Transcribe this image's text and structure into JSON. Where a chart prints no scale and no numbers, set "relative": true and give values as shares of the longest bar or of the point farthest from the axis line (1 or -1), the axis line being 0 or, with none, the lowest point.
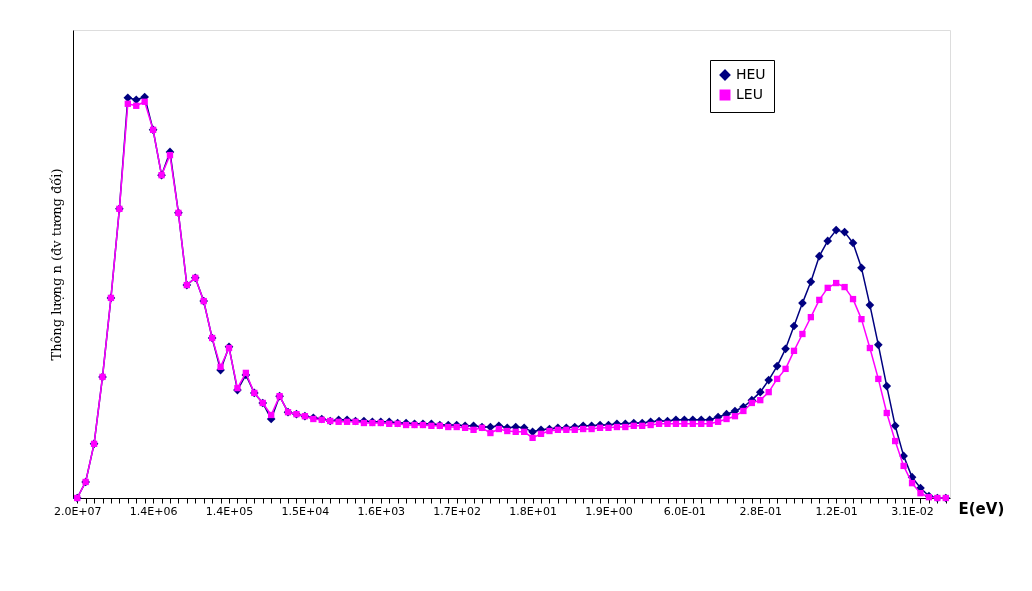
{
  "chart_data": {
    "type": "line",
    "relative": true,
    "xlabel": "E(eV)",
    "ylabel": "Thông lượng n (đv tương đối)",
    "categories": [
      "2.0E+07",
      null,
      null,
      null,
      null,
      null,
      null,
      null,
      null,
      "1.4E+06",
      null,
      null,
      null,
      null,
      null,
      null,
      null,
      null,
      "1.4E+05",
      null,
      null,
      null,
      null,
      null,
      null,
      null,
      null,
      "1.5E+04",
      null,
      null,
      null,
      null,
      null,
      null,
      null,
      null,
      "1.6E+03",
      null,
      null,
      null,
      null,
      null,
      null,
      null,
      null,
      "1.7E+02",
      null,
      null,
      null,
      null,
      null,
      null,
      null,
      null,
      "1.8E+01",
      null,
      null,
      null,
      null,
      null,
      null,
      null,
      null,
      "1.9E+00",
      null,
      null,
      null,
      null,
      null,
      null,
      null,
      null,
      "6.0E-01",
      null,
      null,
      null,
      null,
      null,
      null,
      null,
      null,
      "2.8E-01",
      null,
      null,
      null,
      null,
      null,
      null,
      null,
      null,
      "1.2E-01",
      null,
      null,
      null,
      null,
      null,
      null,
      null,
      null,
      "3.1E-02",
      null,
      null,
      null,
      null
    ],
    "series": [
      {
        "name": "HEU",
        "color": "#000080",
        "marker": "diamond",
        "values": [
          0,
          0.04,
          0.135,
          0.302,
          0.499,
          0.721,
          0.998,
          0.993,
          1,
          0.918,
          0.805,
          0.863,
          0.711,
          0.531,
          0.549,
          0.491,
          0.399,
          0.319,
          0.377,
          0.269,
          0.307,
          0.262,
          0.237,
          0.197,
          0.254,
          0.214,
          0.209,
          0.204,
          0.2,
          0.197,
          0.192,
          0.195,
          0.195,
          0.192,
          0.192,
          0.19,
          0.19,
          0.19,
          0.187,
          0.187,
          0.185,
          0.185,
          0.185,
          0.182,
          0.182,
          0.182,
          0.18,
          0.18,
          0.177,
          0.177,
          0.18,
          0.175,
          0.177,
          0.175,
          0.165,
          0.17,
          0.172,
          0.175,
          0.175,
          0.177,
          0.18,
          0.18,
          0.182,
          0.182,
          0.185,
          0.185,
          0.187,
          0.187,
          0.19,
          0.192,
          0.192,
          0.195,
          0.195,
          0.195,
          0.195,
          0.195,
          0.202,
          0.209,
          0.217,
          0.227,
          0.244,
          0.264,
          0.294,
          0.329,
          0.372,
          0.429,
          0.486,
          0.539,
          0.603,
          0.641,
          0.668,
          0.663,
          0.636,
          0.574,
          0.481,
          0.382,
          0.279,
          0.18,
          0.105,
          0.052,
          0.025,
          0.005,
          0,
          0
        ]
      },
      {
        "name": "LEU",
        "color": "#ff00ff",
        "marker": "square",
        "values": [
          0,
          0.04,
          0.135,
          0.302,
          0.499,
          0.721,
          0.983,
          0.978,
          0.988,
          0.918,
          0.805,
          0.855,
          0.711,
          0.531,
          0.549,
          0.491,
          0.399,
          0.327,
          0.374,
          0.274,
          0.312,
          0.262,
          0.237,
          0.207,
          0.254,
          0.214,
          0.209,
          0.204,
          0.197,
          0.195,
          0.192,
          0.19,
          0.19,
          0.19,
          0.187,
          0.187,
          0.187,
          0.185,
          0.185,
          0.182,
          0.182,
          0.182,
          0.18,
          0.18,
          0.177,
          0.177,
          0.175,
          0.17,
          0.175,
          0.162,
          0.172,
          0.167,
          0.165,
          0.165,
          0.15,
          0.16,
          0.167,
          0.17,
          0.17,
          0.17,
          0.172,
          0.172,
          0.175,
          0.175,
          0.177,
          0.177,
          0.18,
          0.18,
          0.182,
          0.185,
          0.185,
          0.185,
          0.185,
          0.185,
          0.185,
          0.185,
          0.19,
          0.197,
          0.204,
          0.217,
          0.237,
          0.244,
          0.264,
          0.297,
          0.322,
          0.367,
          0.409,
          0.451,
          0.494,
          0.524,
          0.536,
          0.526,
          0.496,
          0.446,
          0.374,
          0.297,
          0.212,
          0.142,
          0.08,
          0.037,
          0.012,
          0.002,
          0,
          0
        ]
      }
    ],
    "legend": "top right",
    "grid": false
  }
}
